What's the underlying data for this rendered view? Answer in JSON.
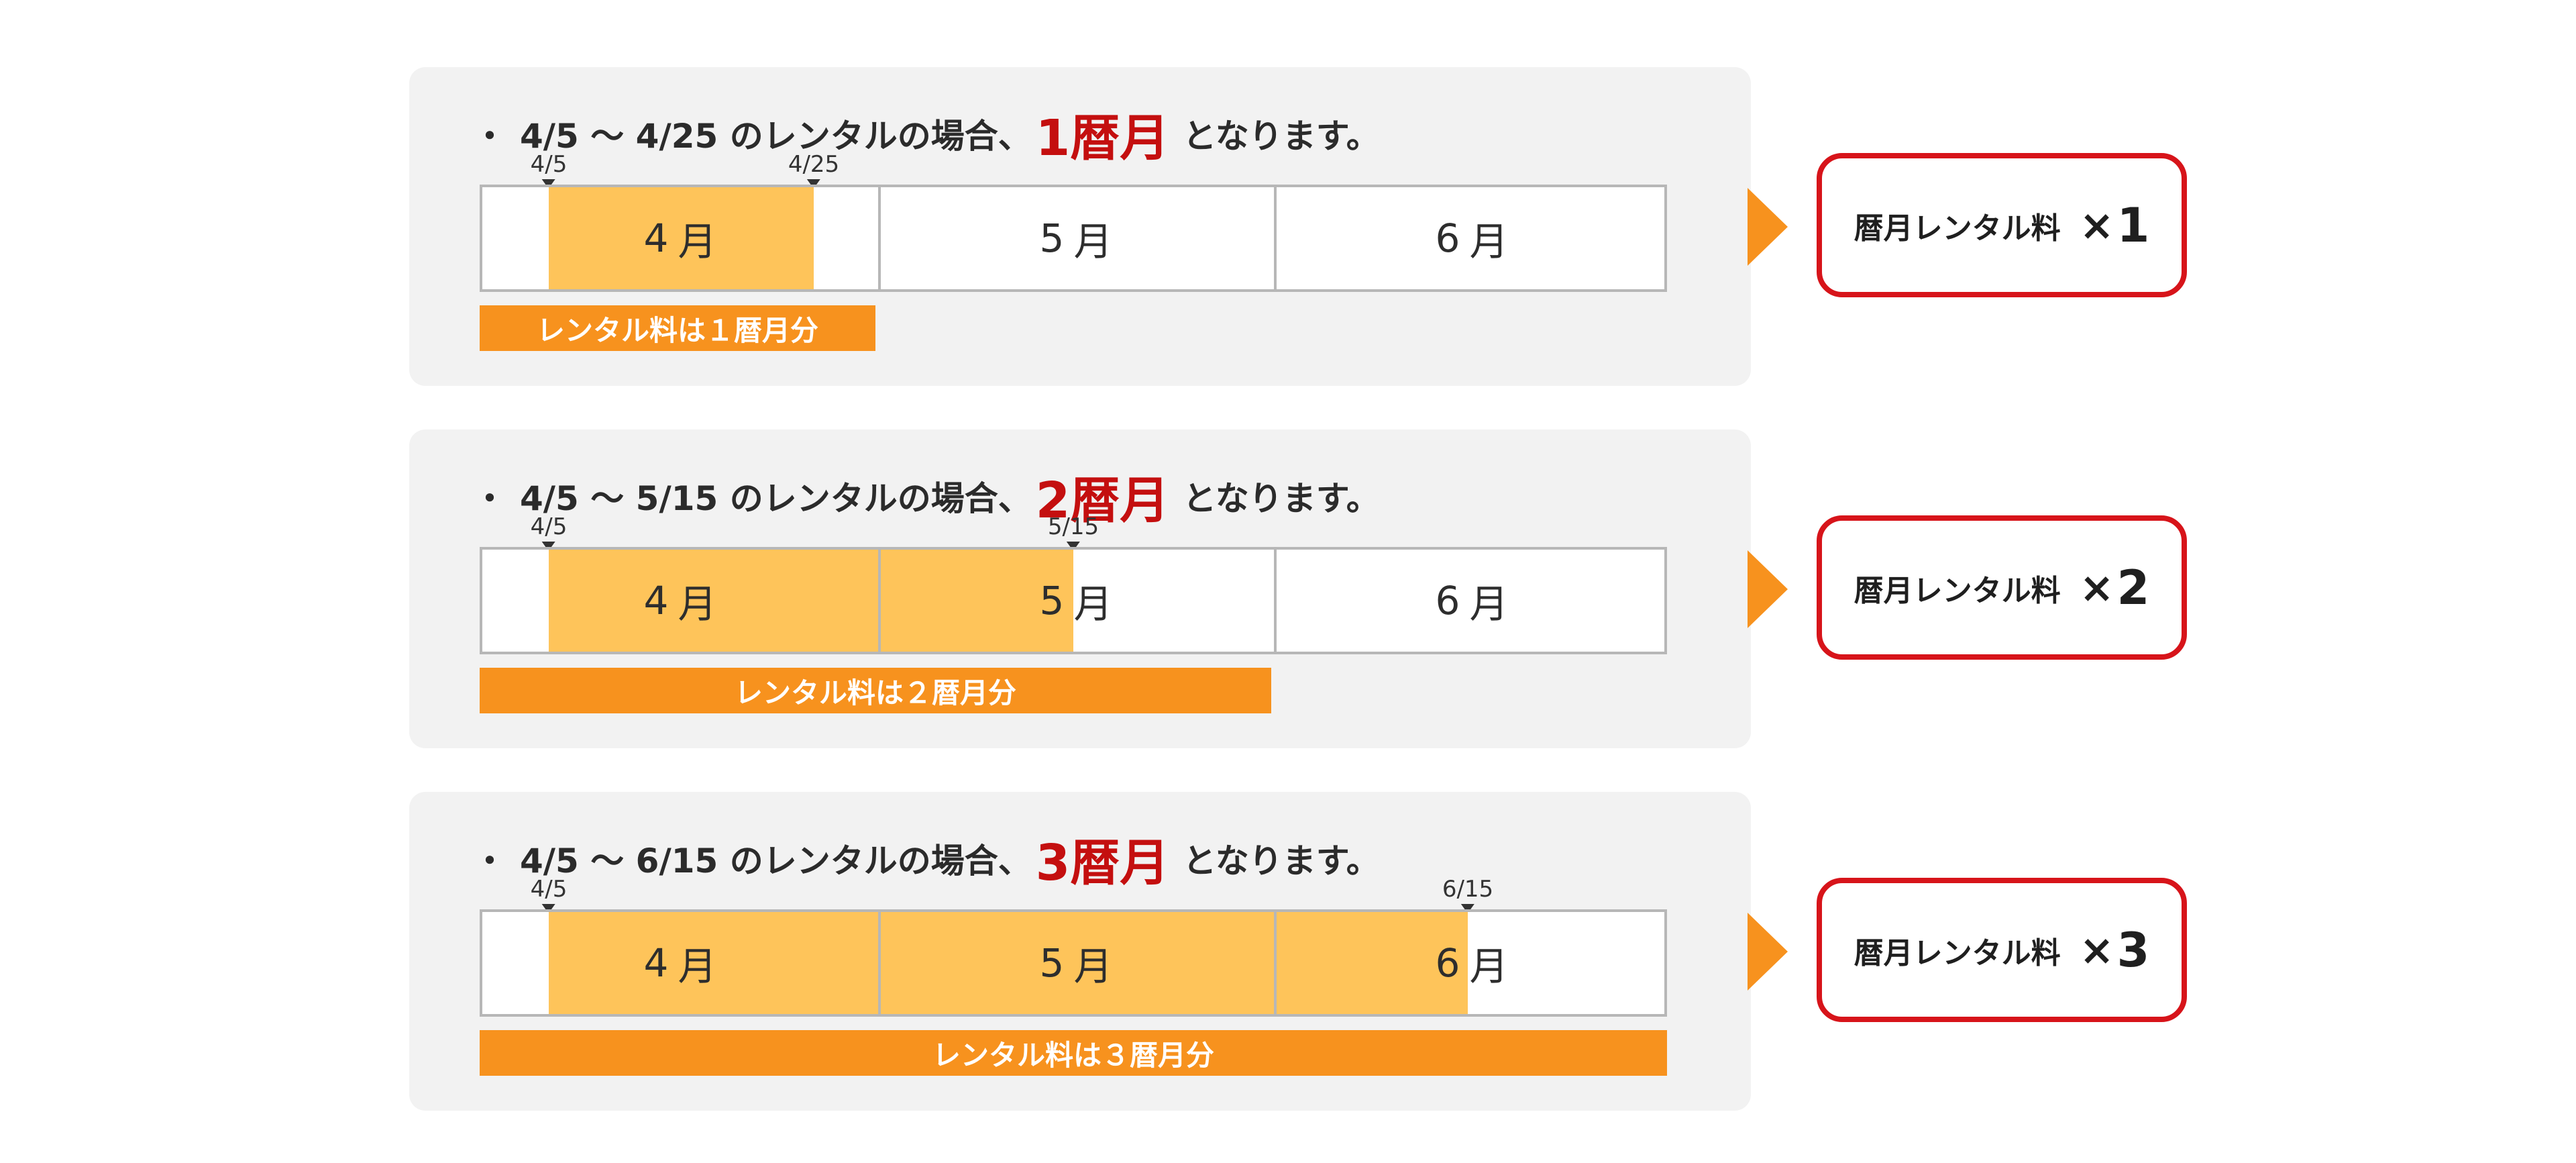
{
  "scenarios": [
    {
      "bullet": "・",
      "range_text": "4/5 〜 4/25 のレンタルの場合、",
      "emphasis": "1暦月",
      "suffix": "となります。",
      "start_marker": "4/5",
      "end_marker": "4/25",
      "bar_label": "レンタル料は１暦月分",
      "result_label": "暦月レンタル料",
      "times": "×",
      "multiplier": "1"
    },
    {
      "bullet": "・",
      "range_text": "4/5 〜 5/15 のレンタルの場合、",
      "emphasis": "2暦月",
      "suffix": "となります。",
      "start_marker": "4/5",
      "end_marker": "5/15",
      "bar_label": "レンタル料は２暦月分",
      "result_label": "暦月レンタル料",
      "times": "×",
      "multiplier": "2"
    },
    {
      "bullet": "・",
      "range_text": "4/5 〜 6/15 のレンタルの場合、",
      "emphasis": "3暦月",
      "suffix": "となります。",
      "start_marker": "4/5",
      "end_marker": "6/15",
      "bar_label": "レンタル料は３暦月分",
      "result_label": "暦月レンタル料",
      "times": "×",
      "multiplier": "3"
    }
  ],
  "months": [
    {
      "num": "4",
      "unit": "月"
    },
    {
      "num": "5",
      "unit": "月"
    },
    {
      "num": "6",
      "unit": "月"
    }
  ],
  "colors": {
    "highlight_fill": "#fec45a",
    "bar_orange": "#f7921e",
    "emphasis_red": "#c40f0f",
    "result_border": "#d7141a",
    "panel_bg": "#f2f2f2"
  }
}
